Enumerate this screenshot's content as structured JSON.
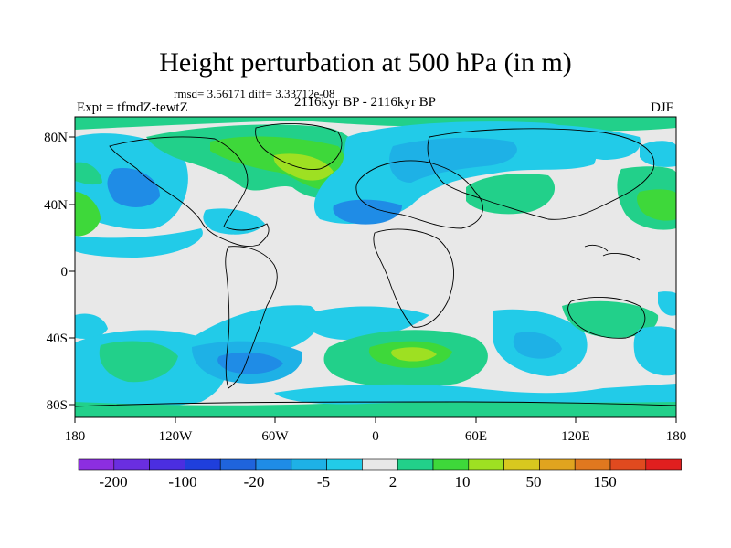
{
  "title": "Height perturbation at 500 hPa (in m)",
  "stats": "rmsd= 3.56171 diff= 3.33712e-08",
  "experiment": "Expt = tfmdZ-tewtZ",
  "period": "2116kyr BP - 2116kyr BP",
  "season": "DJF",
  "colors": {
    "background_neutral": "#e8e8e8",
    "levels": [
      "#8c2ee0",
      "#6a2ee0",
      "#4b2ee0",
      "#1f3fdc",
      "#1f64dc",
      "#1f8ce6",
      "#1eb1e6",
      "#22cbe8",
      "#e8e8e8",
      "#22d08a",
      "#3ed83a",
      "#9ee022",
      "#d8c81f",
      "#e0a41f",
      "#e0781f",
      "#e04a1f",
      "#e01f1f"
    ]
  },
  "colorbar": {
    "labels": [
      "-200",
      "-100",
      "-20",
      "-5",
      "2",
      "10",
      "50",
      "150"
    ]
  },
  "axes": {
    "y_ticks": [
      "80N",
      "40N",
      "0",
      "40S",
      "80S"
    ],
    "x_ticks": [
      "180",
      "120W",
      "60W",
      "0",
      "60E",
      "120E",
      "180"
    ]
  }
}
